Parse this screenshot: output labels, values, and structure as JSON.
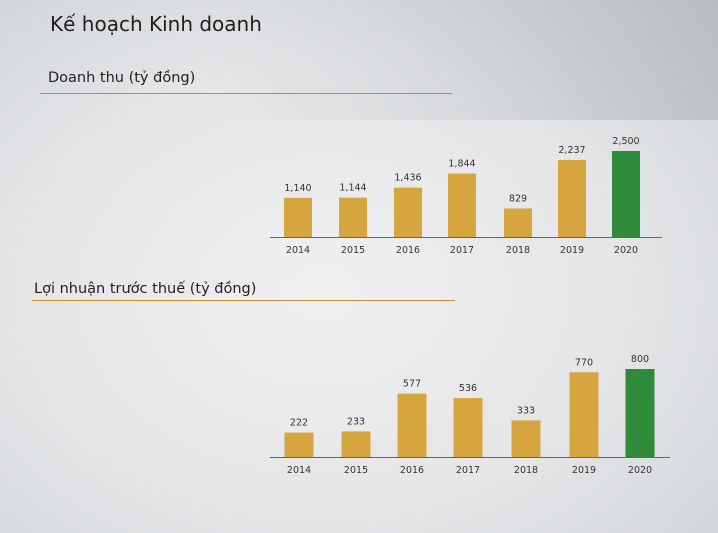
{
  "title": "Kế hoạch Kinh doanh",
  "colors": {
    "bar": "#d7a540",
    "highlight": "#2f8a3a",
    "rule": "#c98a2a"
  },
  "chart_data": [
    {
      "type": "bar",
      "title": "Doanh thu (tỷ đồng)",
      "categories": [
        "2014",
        "2015",
        "2016",
        "2017",
        "2018",
        "2019",
        "2020"
      ],
      "values": [
        1140,
        1144,
        1436,
        1844,
        829,
        2237,
        2500
      ],
      "data_labels": [
        "1,140",
        "1,144",
        "1,436",
        "1,844",
        "829",
        "2,237",
        "2,500"
      ],
      "highlight_category": "2020",
      "grid": false
    },
    {
      "type": "bar",
      "title": "Lợi nhuận trước thuế (tỷ đồng)",
      "categories": [
        "2014",
        "2015",
        "2016",
        "2017",
        "2018",
        "2019",
        "2020"
      ],
      "values": [
        222,
        233,
        577,
        536,
        333,
        770,
        800
      ],
      "data_labels": [
        "222",
        "233",
        "577",
        "536",
        "333",
        "770",
        "800"
      ],
      "highlight_category": "2020",
      "grid": false
    }
  ]
}
